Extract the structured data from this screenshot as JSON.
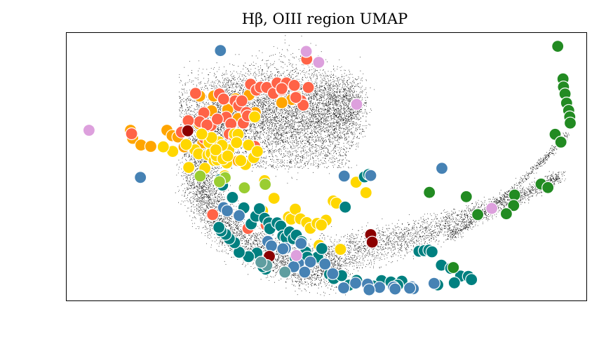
{
  "chart_data": {
    "type": "scatter",
    "title": "Hβ, OIII region UMAP",
    "xlabel": "",
    "ylabel": "",
    "xlim": [
      0,
      100
    ],
    "ylim": [
      0,
      100
    ],
    "grid": false,
    "axes_ticks": false,
    "background_cloud": "dense black point cloud of all embedded spectra, crescent / horseshoe shaped",
    "colors": {
      "orange": "#FFA500",
      "tomato": "#FF6347",
      "gold": "#FFD700",
      "teal": "#008080",
      "steelblue": "#4682B4",
      "green": "#228B22",
      "plum": "#DDA0DD",
      "darkred": "#8B0000",
      "yellowgreen": "#9ACD32",
      "cadetblue": "#5F9EA0"
    },
    "series": [
      {
        "color": "#FFA500",
        "points": [
          [
            12.3,
            63.6
          ],
          [
            12.7,
            60.6
          ],
          [
            14.3,
            58.1
          ],
          [
            16.2,
            57.6
          ],
          [
            19.3,
            63.6
          ],
          [
            20.3,
            61.6
          ],
          [
            21.4,
            61.1
          ],
          [
            22.6,
            57.4
          ],
          [
            26.2,
            58.9
          ],
          [
            24.9,
            77.5
          ],
          [
            25.6,
            76.4
          ],
          [
            28.3,
            76.4
          ],
          [
            32.5,
            75.4
          ],
          [
            35.1,
            76.8
          ],
          [
            39.9,
            79.8
          ],
          [
            41.9,
            81.2
          ],
          [
            43.3,
            75.1
          ],
          [
            44.2,
            76.3
          ],
          [
            33.0,
            52.2
          ],
          [
            41.4,
            73.9
          ],
          [
            36.3,
            70.2
          ],
          [
            27.9,
            70.9
          ],
          [
            31.0,
            71.4
          ],
          [
            25.5,
            66.0
          ],
          [
            33.0,
            68.0
          ]
        ]
      },
      {
        "color": "#FF6347",
        "points": [
          [
            12.5,
            62.3
          ],
          [
            24.8,
            77.4
          ],
          [
            26.4,
            70.1
          ],
          [
            29.4,
            77.2
          ],
          [
            30.7,
            68.5
          ],
          [
            31.6,
            66.0
          ],
          [
            32.4,
            74.6
          ],
          [
            33.1,
            72.8
          ],
          [
            33.7,
            74.6
          ],
          [
            34.6,
            70.3
          ],
          [
            35.4,
            80.8
          ],
          [
            36.5,
            78.6
          ],
          [
            37.3,
            79.7
          ],
          [
            38.5,
            79.6
          ],
          [
            39.8,
            77.4
          ],
          [
            40.5,
            81.3
          ],
          [
            41.4,
            78.7
          ],
          [
            42.3,
            81.3
          ],
          [
            43.8,
            80.4
          ],
          [
            45.1,
            74.7
          ],
          [
            45.5,
            73.0
          ],
          [
            46.2,
            90.2
          ],
          [
            46.5,
            79.6
          ],
          [
            31.3,
            62.2
          ],
          [
            22.1,
            62.9
          ],
          [
            27.8,
            65.4
          ],
          [
            25.6,
            66.8
          ],
          [
            29.0,
            67.8
          ],
          [
            32.3,
            61.1
          ],
          [
            34.0,
            66.3
          ],
          [
            34.8,
            69.0
          ],
          [
            23.4,
            67.2
          ],
          [
            27.0,
            65.6
          ],
          [
            28.1,
            32.1
          ],
          [
            34.9,
            26.9
          ],
          [
            38.4,
            28.2
          ],
          [
            26.5,
            60.6
          ],
          [
            36.2,
            57.6
          ],
          [
            41.4,
            79.2
          ],
          [
            30.2,
            75.3
          ],
          [
            44.1,
            75.9
          ]
        ]
      },
      {
        "color": "#FFD700",
        "points": [
          [
            23.5,
            49.7
          ],
          [
            24.7,
            56.3
          ],
          [
            25.4,
            54.8
          ],
          [
            26.6,
            49.4
          ],
          [
            27.2,
            54.4
          ],
          [
            27.8,
            55.0
          ],
          [
            28.4,
            52.3
          ],
          [
            29.0,
            52.5
          ],
          [
            30.4,
            46.6
          ],
          [
            30.8,
            51.4
          ],
          [
            31.2,
            56.3
          ],
          [
            32.3,
            62.2
          ],
          [
            33.0,
            62.1
          ],
          [
            33.8,
            51.8
          ],
          [
            34.4,
            50.8
          ],
          [
            35.0,
            58.1
          ],
          [
            36.0,
            53.4
          ],
          [
            27.4,
            59.1
          ],
          [
            28.8,
            54.1
          ],
          [
            29.3,
            59.3
          ],
          [
            30.1,
            52.9
          ],
          [
            31.0,
            54.0
          ],
          [
            32.7,
            59.0
          ],
          [
            33.5,
            52.3
          ],
          [
            36.2,
            68.6
          ],
          [
            36.7,
            55.7
          ],
          [
            37.7,
            33.5
          ],
          [
            38.1,
            44.8
          ],
          [
            39.9,
            38.2
          ],
          [
            42.7,
            31.2
          ],
          [
            43.2,
            30.4
          ],
          [
            44.0,
            34.1
          ],
          [
            45.0,
            30.5
          ],
          [
            46.2,
            29.1
          ],
          [
            46.9,
            27.0
          ],
          [
            48.2,
            28.8
          ],
          [
            48.6,
            20.6
          ],
          [
            49.9,
            30.0
          ],
          [
            49.0,
            28.2
          ],
          [
            51.3,
            37.2
          ],
          [
            51.9,
            36.4
          ],
          [
            52.7,
            19.1
          ],
          [
            55.7,
            44.2
          ],
          [
            57.6,
            40.3
          ],
          [
            20.4,
            55.7
          ],
          [
            18.6,
            57.4
          ],
          [
            27.9,
            60.9
          ],
          [
            26.0,
            62.2
          ],
          [
            23.0,
            58.3
          ],
          [
            29.9,
            58.0
          ],
          [
            28.7,
            56.3
          ]
        ]
      },
      {
        "color": "#008080",
        "points": [
          [
            29.5,
            45.1
          ],
          [
            30.0,
            43.1
          ],
          [
            31.9,
            38.5
          ],
          [
            34.1,
            34.6
          ],
          [
            35.5,
            28.6
          ],
          [
            36.4,
            31.5
          ],
          [
            37.1,
            34.3
          ],
          [
            38.1,
            30.7
          ],
          [
            38.9,
            29.0
          ],
          [
            39.1,
            26.8
          ],
          [
            40.5,
            29.0
          ],
          [
            41.2,
            27.8
          ],
          [
            41.6,
            24.1
          ],
          [
            42.2,
            23.5
          ],
          [
            42.9,
            25.6
          ],
          [
            43.6,
            23.1
          ],
          [
            44.2,
            24.4
          ],
          [
            45.2,
            22.0
          ],
          [
            46.0,
            18.1
          ],
          [
            46.8,
            14.1
          ],
          [
            48.3,
            16.2
          ],
          [
            50.6,
            9.8
          ],
          [
            51.4,
            8.2
          ],
          [
            52.9,
            9.3
          ],
          [
            55.8,
            7.5
          ],
          [
            60.6,
            7.4
          ],
          [
            62.4,
            6.9
          ],
          [
            64.5,
            7.2
          ],
          [
            67.8,
            18.4
          ],
          [
            68.8,
            18.6
          ],
          [
            69.7,
            18.8
          ],
          [
            70.3,
            18.2
          ],
          [
            72.1,
            13.2
          ],
          [
            73.9,
            12.0
          ],
          [
            75.8,
            9.1
          ],
          [
            77.3,
            9.0
          ],
          [
            77.9,
            7.8
          ],
          [
            74.6,
            6.6
          ],
          [
            71.4,
            5.8
          ],
          [
            63.7,
            5.7
          ],
          [
            59.0,
            5.4
          ],
          [
            54.3,
            5.7
          ],
          [
            53.6,
            34.9
          ],
          [
            57.3,
            46.2
          ],
          [
            58.1,
            47.1
          ],
          [
            49.1,
            19.4
          ],
          [
            46.3,
            16.2
          ],
          [
            44.0,
            15.9
          ],
          [
            38.3,
            11.7
          ],
          [
            37.8,
            12.6
          ],
          [
            36.6,
            17.7
          ],
          [
            35.0,
            16.4
          ],
          [
            33.2,
            18.0
          ],
          [
            32.3,
            21.6
          ],
          [
            31.3,
            23.1
          ],
          [
            30.6,
            24.7
          ],
          [
            29.7,
            26.0
          ],
          [
            29.3,
            27.3
          ]
        ]
      },
      {
        "color": "#4682B4",
        "points": [
          [
            29.6,
            93.4
          ],
          [
            14.2,
            46.0
          ],
          [
            53.4,
            46.5
          ],
          [
            58.5,
            46.7
          ],
          [
            72.2,
            49.4
          ],
          [
            70.7,
            6.4
          ],
          [
            62.9,
            5.0
          ],
          [
            63.2,
            4.3
          ],
          [
            66.4,
            5.1
          ],
          [
            66.7,
            4.4
          ],
          [
            66.0,
            4.6
          ],
          [
            55.6,
            6.5
          ],
          [
            60.2,
            4.9
          ],
          [
            57.9,
            6.1
          ],
          [
            58.2,
            4.0
          ],
          [
            44.6,
            13.9
          ],
          [
            46.9,
            14.4
          ],
          [
            43.7,
            12.6
          ],
          [
            45.8,
            10.6
          ],
          [
            49.7,
            13.6
          ],
          [
            51.2,
            10.0
          ],
          [
            53.3,
            4.7
          ],
          [
            45.1,
            21.3
          ],
          [
            42.1,
            19.5
          ],
          [
            38.7,
            22.1
          ],
          [
            39.4,
            20.4
          ],
          [
            41.6,
            19.3
          ],
          [
            33.2,
            31.7
          ],
          [
            30.2,
            34.7
          ],
          [
            30.9,
            33.5
          ]
        ]
      },
      {
        "color": "#228B22",
        "points": [
          [
            94.5,
            95.0
          ],
          [
            95.5,
            82.8
          ],
          [
            95.6,
            79.8
          ],
          [
            95.9,
            77.2
          ],
          [
            96.2,
            73.8
          ],
          [
            96.6,
            71.0
          ],
          [
            96.8,
            68.6
          ],
          [
            96.9,
            66.3
          ],
          [
            94.0,
            62.1
          ],
          [
            95.1,
            59.2
          ],
          [
            91.3,
            43.5
          ],
          [
            92.6,
            42.2
          ],
          [
            86.2,
            39.4
          ],
          [
            86.0,
            35.5
          ],
          [
            84.6,
            32.4
          ],
          [
            79.1,
            32.1
          ],
          [
            69.8,
            40.4
          ],
          [
            76.9,
            38.8
          ],
          [
            74.4,
            12.3
          ]
        ]
      },
      {
        "color": "#DDA0DD",
        "points": [
          [
            4.3,
            63.6
          ],
          [
            46.1,
            93.1
          ],
          [
            48.5,
            89.0
          ],
          [
            55.8,
            73.3
          ],
          [
            81.8,
            34.4
          ],
          [
            44.2,
            16.8
          ]
        ]
      },
      {
        "color": "#8B0000",
        "points": [
          [
            23.3,
            63.4
          ],
          [
            39.0,
            16.5
          ],
          [
            58.5,
            24.6
          ],
          [
            58.8,
            21.8
          ]
        ]
      },
      {
        "color": "#9ACD32",
        "points": [
          [
            38.2,
            43.4
          ],
          [
            34.2,
            42.1
          ],
          [
            30.5,
            45.9
          ],
          [
            25.7,
            46.5
          ],
          [
            29.4,
            44.4
          ]
        ]
      },
      {
        "color": "#5F9EA0",
        "points": [
          [
            42.0,
            10.6
          ],
          [
            38.5,
            13.1
          ],
          [
            37.4,
            14.3
          ]
        ]
      }
    ]
  }
}
